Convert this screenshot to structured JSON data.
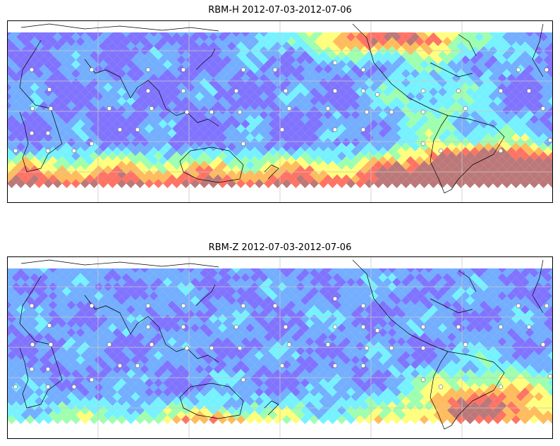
{
  "panels": [
    {
      "title": "RBM-H 2012-07-03-2012-07-06",
      "field_kind": "high"
    },
    {
      "title": "RBM-Z 2012-07-03-2012-07-06",
      "field_kind": "low"
    }
  ],
  "colormap": [
    "#6a5cff",
    "#5aa0ff",
    "#5ef0ff",
    "#8dffa0",
    "#ffff66",
    "#ffb040",
    "#ff5a4a",
    "#b06060"
  ],
  "coastline_color": "#000000",
  "gridline_color": "#c8c8c8"
}
